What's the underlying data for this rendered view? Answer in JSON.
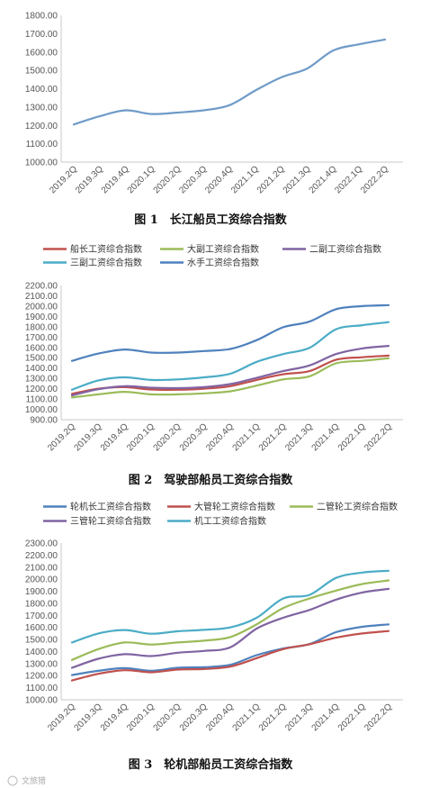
{
  "chart_data": [
    {
      "type": "line",
      "title": "",
      "caption": "图 1　长江船员工资综合指数",
      "categories": [
        "2019.2Q",
        "2019.3Q",
        "2019.4Q",
        "2020.1Q",
        "2020.2Q",
        "2020.3Q",
        "2020.4Q",
        "2021.1Q",
        "2021.2Q",
        "2021.3Q",
        "2021.4Q",
        "2022.1Q",
        "2022.2Q"
      ],
      "ylim": [
        1000,
        1800
      ],
      "ystep": 100,
      "legend": "none",
      "grid": false,
      "series": [
        {
          "name": "",
          "color": "#6f9bc8",
          "values": [
            1205,
            1250,
            1282,
            1262,
            1270,
            1282,
            1310,
            1390,
            1462,
            1510,
            1608,
            1642,
            1668
          ]
        }
      ]
    },
    {
      "type": "line",
      "title": "",
      "caption": "图 2　驾驶部船员工资综合指数",
      "categories": [
        "2019.2Q",
        "2019.3Q",
        "2019.4Q",
        "2020.1Q",
        "2020.2Q",
        "2020.3Q",
        "2020.4Q",
        "2021.1Q",
        "2021.2Q",
        "2021.3Q",
        "2021.4Q",
        "2022.1Q",
        "2022.2Q"
      ],
      "ylim": [
        900,
        2200
      ],
      "ystep": 100,
      "legend": "top",
      "grid": false,
      "series": [
        {
          "name": "船长工资综合指数",
          "color": "#c0504d",
          "values": [
            1150,
            1200,
            1215,
            1192,
            1190,
            1200,
            1225,
            1285,
            1340,
            1370,
            1480,
            1505,
            1520
          ]
        },
        {
          "name": "大副工资综合指数",
          "color": "#9bbb59",
          "values": [
            1115,
            1145,
            1170,
            1145,
            1145,
            1155,
            1175,
            1230,
            1290,
            1320,
            1445,
            1470,
            1495
          ]
        },
        {
          "name": "二副工资综合指数",
          "color": "#8064a2",
          "values": [
            1135,
            1195,
            1225,
            1210,
            1205,
            1215,
            1245,
            1305,
            1370,
            1425,
            1535,
            1590,
            1615
          ]
        },
        {
          "name": "三副工资综合指数",
          "color": "#4bacc6",
          "values": [
            1190,
            1280,
            1310,
            1285,
            1290,
            1310,
            1345,
            1460,
            1535,
            1595,
            1775,
            1815,
            1845
          ]
        },
        {
          "name": "水手工资综合指数",
          "color": "#4f81bd",
          "values": [
            1470,
            1540,
            1580,
            1550,
            1550,
            1565,
            1585,
            1670,
            1795,
            1850,
            1970,
            2000,
            2010
          ]
        }
      ]
    },
    {
      "type": "line",
      "title": "",
      "caption": "图 3　轮机部船员工资综合指数",
      "categories": [
        "2019.2Q",
        "2019.3Q",
        "2019.4Q",
        "2020.1Q",
        "2020.2Q",
        "2020.3Q",
        "2020.4Q",
        "2021.1Q",
        "2021.2Q",
        "2021.3Q",
        "2021.4Q",
        "2022.1Q",
        "2022.2Q"
      ],
      "ylim": [
        1000,
        2300
      ],
      "ystep": 100,
      "legend": "top",
      "grid": false,
      "series": [
        {
          "name": "轮机长工资综合指数",
          "color": "#4f81bd",
          "values": [
            1205,
            1240,
            1262,
            1240,
            1265,
            1270,
            1290,
            1370,
            1425,
            1462,
            1560,
            1605,
            1625
          ]
        },
        {
          "name": "大管轮工资综合指数",
          "color": "#c0504d",
          "values": [
            1160,
            1215,
            1245,
            1228,
            1250,
            1255,
            1275,
            1345,
            1420,
            1460,
            1515,
            1550,
            1570
          ]
        },
        {
          "name": "二管轮工资综合指数",
          "color": "#9bbb59",
          "values": [
            1330,
            1420,
            1475,
            1458,
            1475,
            1490,
            1520,
            1625,
            1760,
            1840,
            1905,
            1960,
            1990
          ]
        },
        {
          "name": "三管轮工资综合指数",
          "color": "#8064a2",
          "values": [
            1265,
            1340,
            1378,
            1362,
            1390,
            1405,
            1435,
            1590,
            1680,
            1745,
            1830,
            1890,
            1920
          ]
        },
        {
          "name": "机工工资综合指数",
          "color": "#4bacc6",
          "values": [
            1475,
            1550,
            1578,
            1548,
            1568,
            1580,
            1600,
            1680,
            1840,
            1870,
            2010,
            2055,
            2070
          ]
        }
      ]
    }
  ],
  "watermark": "文旅猎"
}
